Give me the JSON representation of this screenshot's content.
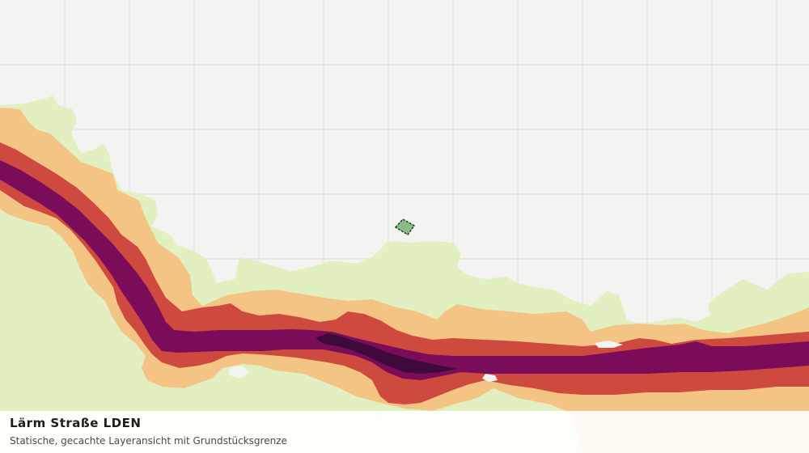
{
  "map": {
    "layer_title": "Lärm Straße LDEN",
    "layer_subtitle": "Statische, gecachte Layeransicht mit Grundstücksgrenze",
    "colors": {
      "background": "#f3f4f1",
      "grid": "#dcdedb",
      "band_outer": "#e2f0c1",
      "band_light": "#f4c484",
      "band_mid": "#cf4a3e",
      "band_high": "#7a0c5a",
      "band_peak": "#3e0a3c",
      "parcel_fill": "#8fb98c",
      "parcel_stroke": "#1f4d24"
    },
    "icons": [
      "parcel-boundary"
    ]
  }
}
